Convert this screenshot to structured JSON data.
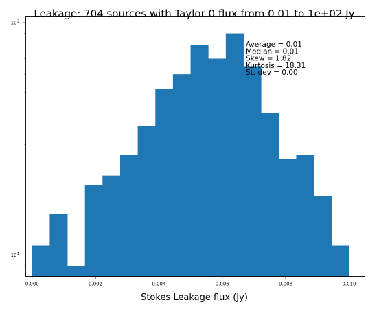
{
  "chart_data": {
    "type": "bar",
    "title": "Leakage: 704 sources with Taylor 0 flux from 0.01 to 1e+02 Jy",
    "xlabel": "Stokes Leakage flux (Jy)",
    "ylabel": "",
    "yscale": "log",
    "xlim": [
      -0.0002,
      0.0105
    ],
    "ylim": [
      8.1,
      106
    ],
    "grid": false,
    "bar_color": "#1f77b4",
    "bins": {
      "edges": [
        0.0,
        0.000556,
        0.001111,
        0.001667,
        0.002222,
        0.002778,
        0.003333,
        0.003889,
        0.004444,
        0.005,
        0.005556,
        0.006111,
        0.006667,
        0.007222,
        0.007778,
        0.008333,
        0.008889,
        0.009444,
        0.01
      ],
      "values": [
        11,
        15,
        9,
        20,
        22,
        27,
        36,
        52,
        60,
        80,
        70,
        90,
        65,
        41,
        26,
        27,
        18,
        11
      ]
    },
    "xticks": [
      {
        "value": 0.0,
        "label": "0.000"
      },
      {
        "value": 0.002,
        "label": "0.002"
      },
      {
        "value": 0.004,
        "label": "0.004"
      },
      {
        "value": 0.006,
        "label": "0.006"
      },
      {
        "value": 0.008,
        "label": "0.008"
      },
      {
        "value": 0.01,
        "label": "0.010"
      }
    ],
    "yticks": [
      {
        "value": 10,
        "base": "10",
        "exp": "1"
      },
      {
        "value": 100,
        "base": "10",
        "exp": "2"
      }
    ],
    "stats": [
      "Average = 0.01",
      "Median = 0.01",
      "Skew = 1.82",
      "Kurtosis = 18.31",
      "St. dev = 0.00"
    ]
  }
}
